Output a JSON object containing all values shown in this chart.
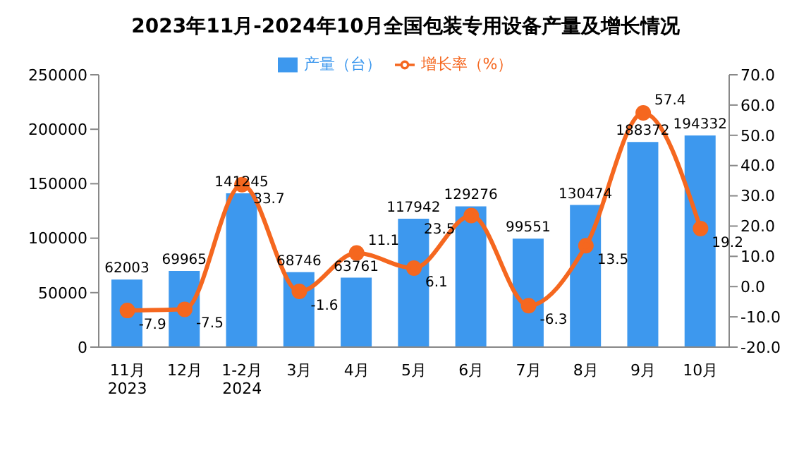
{
  "chart_data": {
    "type": "bar",
    "title": "2023年11月-2024年10月全国包装专用设备产量及增长情况",
    "categories": [
      "11月\n2023",
      "12月",
      "1-2月\n2024",
      "3月",
      "4月",
      "5月",
      "6月",
      "7月",
      "8月",
      "9月",
      "10月"
    ],
    "series": [
      {
        "name": "产量（台）",
        "color": "#3d98ee",
        "values": [
          62003,
          69965,
          141245,
          68746,
          63761,
          117942,
          129276,
          99551,
          130474,
          188372,
          194332
        ]
      },
      {
        "name": "增长率（%）",
        "type": "line",
        "axis": "y2",
        "color": "#f5671f",
        "marker": "circle",
        "values": [
          -7.9,
          -7.5,
          33.7,
          -1.6,
          11.1,
          6.1,
          23.5,
          -6.3,
          13.5,
          57.4,
          19.2
        ]
      }
    ],
    "ylim": [
      0,
      250000
    ],
    "yticks": [
      0,
      50000,
      100000,
      150000,
      200000,
      250000
    ],
    "y2lim": [
      -20,
      70
    ],
    "y2ticks": [
      {
        "value": -20,
        "label": "-20.0"
      },
      {
        "value": -10,
        "label": "-10.0"
      },
      {
        "value": 0,
        "label": "0.0"
      },
      {
        "value": 10,
        "label": "10.0"
      },
      {
        "value": 20,
        "label": "20.0"
      },
      {
        "value": 30,
        "label": "30.0"
      },
      {
        "value": 40,
        "label": "40.0"
      },
      {
        "value": 50,
        "label": "50.0"
      },
      {
        "value": 60,
        "label": "60.0"
      },
      {
        "value": 70,
        "label": "70.0"
      }
    ],
    "data_labels": true,
    "legend": "top",
    "grid": false
  }
}
